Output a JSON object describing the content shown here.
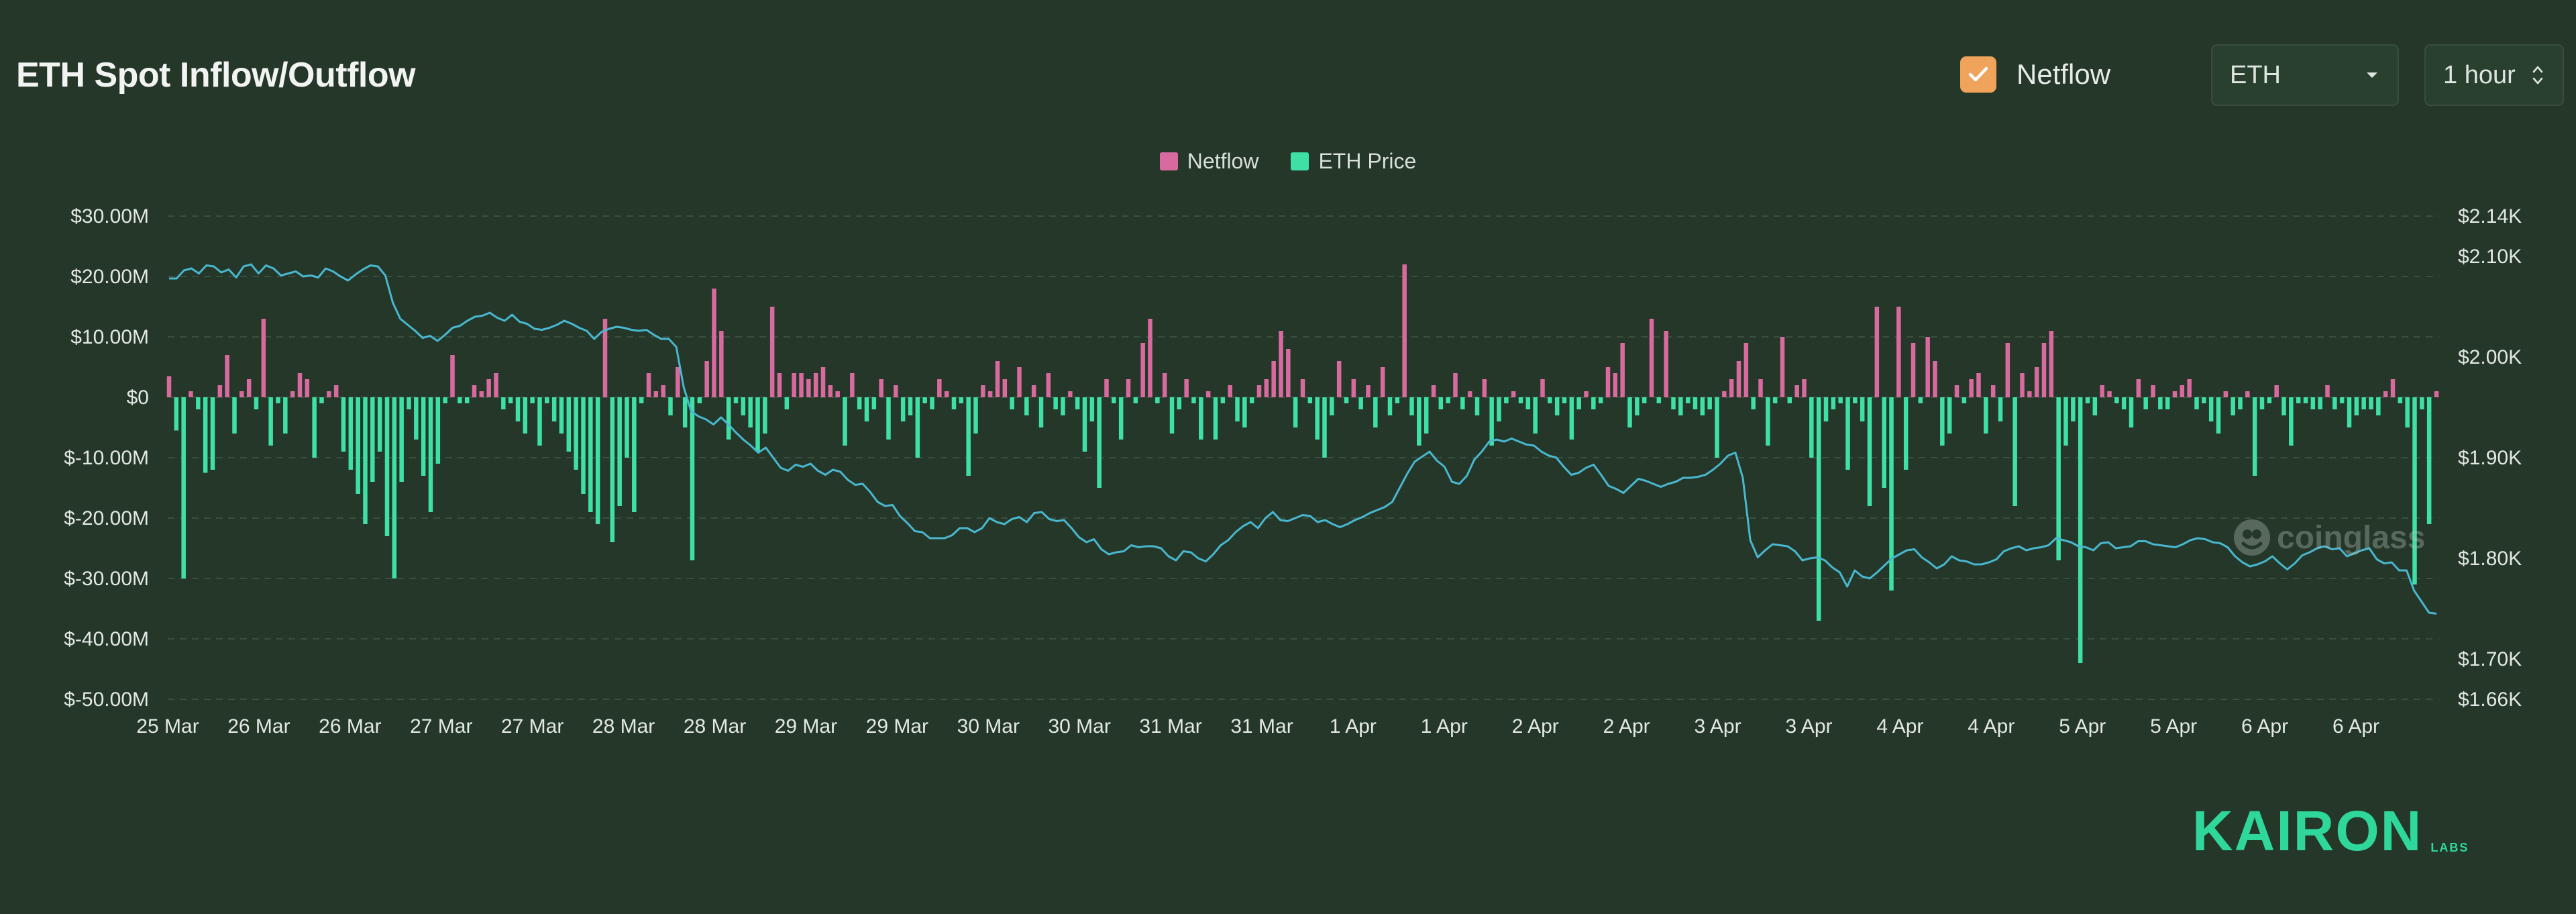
{
  "page": {
    "title": "ETH Spot Inflow/Outflow"
  },
  "controls": {
    "netflow_toggle": {
      "label": "Netflow",
      "checked": true,
      "color": "#f0a35a"
    },
    "asset_select": {
      "value": "ETH",
      "icon": "chevron-down-icon"
    },
    "interval_select": {
      "value": "1 hour",
      "icon": "sort-arrows-icon"
    }
  },
  "watermark": {
    "text": "coinglass",
    "icon": "coinglass-logo-icon"
  },
  "branding": {
    "name": "KAIRON",
    "sub": "LABS",
    "color": "#2fd89a"
  },
  "chart_data": {
    "type": "bar",
    "title": "ETH Spot Inflow/Outflow",
    "legend": [
      {
        "name": "Netflow",
        "color": "#d96aa0"
      },
      {
        "name": "ETH Price",
        "color": "#3fe0a6"
      }
    ],
    "legend_position": "top-center",
    "grid": true,
    "colors": {
      "positive": "#d96aa0",
      "negative": "#3fe0a6",
      "price_line": "#49b7cf"
    },
    "x_tick_labels": [
      "25 Mar",
      "26 Mar",
      "26 Mar",
      "27 Mar",
      "27 Mar",
      "28 Mar",
      "28 Mar",
      "29 Mar",
      "29 Mar",
      "30 Mar",
      "30 Mar",
      "31 Mar",
      "31 Mar",
      "1 Apr",
      "1 Apr",
      "2 Apr",
      "2 Apr",
      "3 Apr",
      "3 Apr",
      "4 Apr",
      "4 Apr",
      "5 Apr",
      "5 Apr",
      "6 Apr",
      "6 Apr"
    ],
    "y_left": {
      "ticks": [
        30,
        20,
        10,
        0,
        -10,
        -20,
        -30,
        -40,
        -50
      ],
      "tick_labels": [
        "$30.00M",
        "$20.00M",
        "$10.00M",
        "$0",
        "$-10.00M",
        "$-20.00M",
        "$-30.00M",
        "$-40.00M",
        "$-50.00M"
      ],
      "range": [
        -50,
        30
      ]
    },
    "y_right": {
      "ticks": [
        2140,
        2100,
        2000,
        1900,
        1800,
        1700,
        1660
      ],
      "tick_labels": [
        "$2.14K",
        "$2.10K",
        "$2.00K",
        "$1.90K",
        "$1.80K",
        "$1.70K",
        "$1.66K"
      ],
      "range": [
        1660,
        2140
      ]
    },
    "netflow_series": {
      "name": "Netflow",
      "unit": "$M",
      "values": [
        3.5,
        -5.5,
        -30,
        1,
        -2,
        -12.5,
        -12,
        2,
        7,
        -6,
        1,
        3,
        -2,
        13,
        -8,
        -1,
        -6,
        1,
        4,
        3,
        -10,
        -1,
        1,
        2,
        -9,
        -12,
        -16,
        -21,
        -14,
        -9,
        -23,
        -30,
        -14,
        -2,
        -7,
        -13,
        -19,
        -11,
        -1,
        7,
        -1,
        -1,
        2,
        1,
        3,
        4,
        -2,
        -1,
        -4,
        -6,
        -1,
        -8,
        -1,
        -4,
        -6,
        -9,
        -12,
        -16,
        -19,
        -21,
        13,
        -24,
        -18,
        -10,
        -19,
        -1,
        4,
        1,
        2,
        -3,
        5,
        -5,
        -27,
        -1,
        6,
        18,
        11,
        -7,
        -1,
        -3,
        -5,
        -9,
        -6,
        15,
        4,
        -2,
        4,
        4,
        3,
        4,
        5,
        2,
        1,
        -8,
        4,
        -2,
        -4,
        -2,
        3,
        -7,
        2,
        -4,
        -3,
        -10,
        -1,
        -2,
        3,
        1,
        -2,
        -1,
        -13,
        -6,
        2,
        1,
        6,
        3,
        -2,
        5,
        -3,
        2,
        -5,
        4,
        -2,
        -3,
        1,
        -2,
        -9,
        -4,
        -15,
        3,
        -1,
        -7,
        3,
        -1,
        9,
        13,
        -1,
        4,
        -6,
        -2,
        3,
        -1,
        -7,
        1,
        -7,
        -1,
        2,
        -4,
        -5,
        -1,
        2,
        3,
        6,
        11,
        8,
        -5,
        3,
        -1,
        -7,
        -10,
        -3,
        6,
        -1,
        3,
        -2,
        2,
        -5,
        5,
        -3,
        -1,
        22,
        -3,
        -8,
        -6,
        2,
        -2,
        -1,
        4,
        -2,
        1,
        -3,
        3,
        -8,
        -4,
        -1,
        1,
        -1,
        -2,
        -6,
        3,
        -1,
        -3,
        -1,
        -7,
        -2,
        1,
        -2,
        -1,
        5,
        4,
        9,
        -5,
        -3,
        -1,
        13,
        -1,
        11,
        -2,
        -3,
        -1,
        -2,
        -3,
        -2,
        -10,
        1,
        3,
        6,
        9,
        -2,
        3,
        -8,
        -1,
        10,
        -1,
        2,
        3,
        -10,
        -37,
        -4,
        -2,
        -1,
        -12,
        -1,
        -4,
        -18,
        15,
        -15,
        -32,
        15,
        -12,
        9,
        -1,
        10,
        6,
        -8,
        -6,
        2,
        -1,
        3,
        4,
        -6,
        2,
        -4,
        9,
        -18,
        4,
        1,
        5,
        9,
        11,
        -27,
        -8,
        -4,
        -44,
        -1,
        -3,
        2,
        1,
        -1,
        -2,
        -5,
        3,
        -2,
        2,
        -2,
        -2,
        1,
        2,
        3,
        -2,
        -1,
        -4,
        -6,
        1,
        -3,
        -2,
        1,
        -13,
        -2,
        -1,
        2,
        -3,
        -8,
        -1,
        -1,
        -2,
        -2,
        2,
        -2,
        -1,
        -5,
        -3,
        -2,
        -2,
        -3,
        1,
        3,
        -1,
        -5,
        -31,
        -2,
        -21,
        1
      ]
    },
    "price_series": {
      "name": "ETH Price",
      "unit": "$",
      "values": [
        2078,
        2078,
        2086,
        2088,
        2083,
        2091,
        2090,
        2084,
        2087,
        2079,
        2090,
        2092,
        2083,
        2091,
        2088,
        2081,
        2083,
        2085,
        2080,
        2081,
        2079,
        2088,
        2085,
        2080,
        2076,
        2082,
        2087,
        2091,
        2090,
        2081,
        2054,
        2038,
        2032,
        2026,
        2019,
        2021,
        2016,
        2022,
        2029,
        2031,
        2036,
        2040,
        2041,
        2044,
        2039,
        2036,
        2042,
        2035,
        2033,
        2028,
        2027,
        2029,
        2032,
        2036,
        2033,
        2029,
        2026,
        2018,
        2025,
        2028,
        2030,
        2029,
        2027,
        2026,
        2027,
        2022,
        2018,
        2018,
        2010,
        1970,
        1946,
        1941,
        1938,
        1933,
        1940,
        1933,
        1925,
        1918,
        1912,
        1905,
        1910,
        1900,
        1890,
        1887,
        1893,
        1891,
        1894,
        1887,
        1883,
        1888,
        1886,
        1878,
        1873,
        1874,
        1866,
        1856,
        1852,
        1853,
        1842,
        1835,
        1827,
        1826,
        1820,
        1820,
        1820,
        1823,
        1830,
        1830,
        1826,
        1830,
        1840,
        1836,
        1834,
        1839,
        1841,
        1836,
        1845,
        1846,
        1839,
        1837,
        1838,
        1830,
        1821,
        1816,
        1819,
        1809,
        1804,
        1806,
        1807,
        1813,
        1811,
        1812,
        1812,
        1810,
        1802,
        1798,
        1807,
        1806,
        1800,
        1797,
        1804,
        1813,
        1818,
        1826,
        1832,
        1836,
        1830,
        1840,
        1846,
        1838,
        1837,
        1840,
        1843,
        1842,
        1836,
        1838,
        1834,
        1831,
        1834,
        1838,
        1841,
        1845,
        1848,
        1851,
        1856,
        1870,
        1884,
        1896,
        1901,
        1906,
        1897,
        1891,
        1876,
        1874,
        1882,
        1898,
        1906,
        1916,
        1918,
        1916,
        1919,
        1916,
        1913,
        1912,
        1906,
        1902,
        1900,
        1891,
        1883,
        1885,
        1890,
        1893,
        1883,
        1872,
        1869,
        1865,
        1872,
        1879,
        1877,
        1874,
        1871,
        1874,
        1876,
        1880,
        1880,
        1881,
        1883,
        1888,
        1894,
        1902,
        1905,
        1880,
        1818,
        1801,
        1808,
        1814,
        1813,
        1812,
        1807,
        1798,
        1800,
        1801,
        1798,
        1791,
        1786,
        1772,
        1788,
        1782,
        1780,
        1786,
        1793,
        1800,
        1804,
        1808,
        1809,
        1801,
        1796,
        1790,
        1794,
        1802,
        1798,
        1797,
        1794,
        1794,
        1796,
        1799,
        1807,
        1810,
        1812,
        1808,
        1810,
        1811,
        1813,
        1820,
        1818,
        1816,
        1812,
        1811,
        1808,
        1815,
        1816,
        1810,
        1811,
        1812,
        1817,
        1817,
        1814,
        1813,
        1812,
        1811,
        1814,
        1818,
        1820,
        1819,
        1816,
        1815,
        1811,
        1802,
        1796,
        1792,
        1794,
        1797,
        1802,
        1795,
        1789,
        1795,
        1803,
        1806,
        1810,
        1812,
        1809,
        1810,
        1802,
        1805,
        1808,
        1810,
        1799,
        1795,
        1796,
        1788,
        1788,
        1768,
        1757,
        1746,
        1745
      ]
    }
  }
}
